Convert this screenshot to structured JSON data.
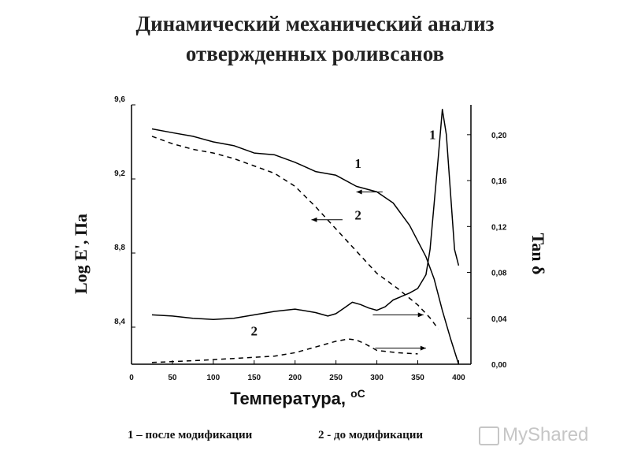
{
  "header": {
    "title_line1": "Динамический механический анализ",
    "title_line2": "отвержденных роливсанов"
  },
  "legend_caption": {
    "item1": "1 – после модификации",
    "item2": "2 - до модификации"
  },
  "watermark": "MyShared",
  "chart_data": {
    "type": "line",
    "xlabel": "Температура, ",
    "xlabel_unit": "oC",
    "ylabel_left": "Log E', Па",
    "ylabel_right": "Tan δ",
    "x_ticks": [
      "0",
      "50",
      "100",
      "150",
      "200",
      "250",
      "300",
      "350",
      "400"
    ],
    "y_left_ticks": [
      "8,4",
      "8,8",
      "9,2",
      "9,6"
    ],
    "y_right_ticks": [
      "0,00",
      "0,04",
      "0,08",
      "0,12",
      "0,16",
      "0,20"
    ],
    "xlim": [
      0,
      415
    ],
    "ylim_left": [
      8.2,
      9.6
    ],
    "ylim_right": [
      0.0,
      0.226
    ],
    "series": [
      {
        "name": "1",
        "axis": "left",
        "style": "solid",
        "x": [
          25,
          50,
          75,
          100,
          125,
          150,
          175,
          200,
          225,
          250,
          275,
          300,
          320,
          340,
          360,
          370,
          380,
          390,
          400
        ],
        "y": [
          9.47,
          9.45,
          9.43,
          9.4,
          9.38,
          9.34,
          9.33,
          9.29,
          9.24,
          9.22,
          9.16,
          9.13,
          9.07,
          8.95,
          8.78,
          8.66,
          8.49,
          8.34,
          8.2
        ]
      },
      {
        "name": "2",
        "axis": "left",
        "style": "dashed",
        "x": [
          25,
          50,
          75,
          100,
          125,
          150,
          175,
          200,
          225,
          250,
          275,
          300,
          325,
          350,
          365,
          375
        ],
        "y": [
          9.43,
          9.39,
          9.36,
          9.34,
          9.31,
          9.27,
          9.23,
          9.16,
          9.05,
          8.93,
          8.81,
          8.69,
          8.61,
          8.52,
          8.45,
          8.39
        ]
      },
      {
        "name": "1",
        "axis": "right",
        "style": "solid",
        "x": [
          25,
          50,
          75,
          100,
          125,
          150,
          175,
          200,
          225,
          240,
          250,
          260,
          270,
          280,
          290,
          300,
          310,
          320,
          330,
          340,
          350,
          360,
          365,
          370,
          375,
          380,
          385,
          390,
          395,
          400
        ],
        "y": [
          0.043,
          0.042,
          0.04,
          0.039,
          0.04,
          0.043,
          0.046,
          0.048,
          0.045,
          0.042,
          0.044,
          0.049,
          0.054,
          0.052,
          0.049,
          0.047,
          0.05,
          0.056,
          0.059,
          0.062,
          0.066,
          0.078,
          0.1,
          0.14,
          0.18,
          0.222,
          0.2,
          0.15,
          0.1,
          0.086
        ]
      },
      {
        "name": "2",
        "axis": "right",
        "style": "dashed",
        "x": [
          25,
          75,
          125,
          175,
          200,
          225,
          250,
          265,
          275,
          285,
          300,
          325,
          350
        ],
        "y": [
          0.0015,
          0.003,
          0.005,
          0.007,
          0.01,
          0.015,
          0.02,
          0.022,
          0.021,
          0.018,
          0.012,
          0.01,
          0.009
        ]
      }
    ],
    "curve_labels": [
      {
        "text": "1",
        "x": 368,
        "axis": "right",
        "y": 0.196
      },
      {
        "text": "1",
        "x": 277,
        "axis": "left",
        "y": 9.26
      },
      {
        "text": "2",
        "x": 277,
        "axis": "left",
        "y": 8.98
      },
      {
        "text": "2",
        "x": 150,
        "axis": "right",
        "y": 0.025
      }
    ],
    "arrows": [
      {
        "axis": "left",
        "from": 307,
        "to": 275,
        "y": 9.13
      },
      {
        "axis": "left",
        "from": 258,
        "to": 220,
        "y": 8.98
      },
      {
        "axis": "right",
        "from": 295,
        "to": 357,
        "y": 0.043
      },
      {
        "axis": "right",
        "from": 298,
        "to": 360,
        "y": 0.014
      }
    ]
  }
}
